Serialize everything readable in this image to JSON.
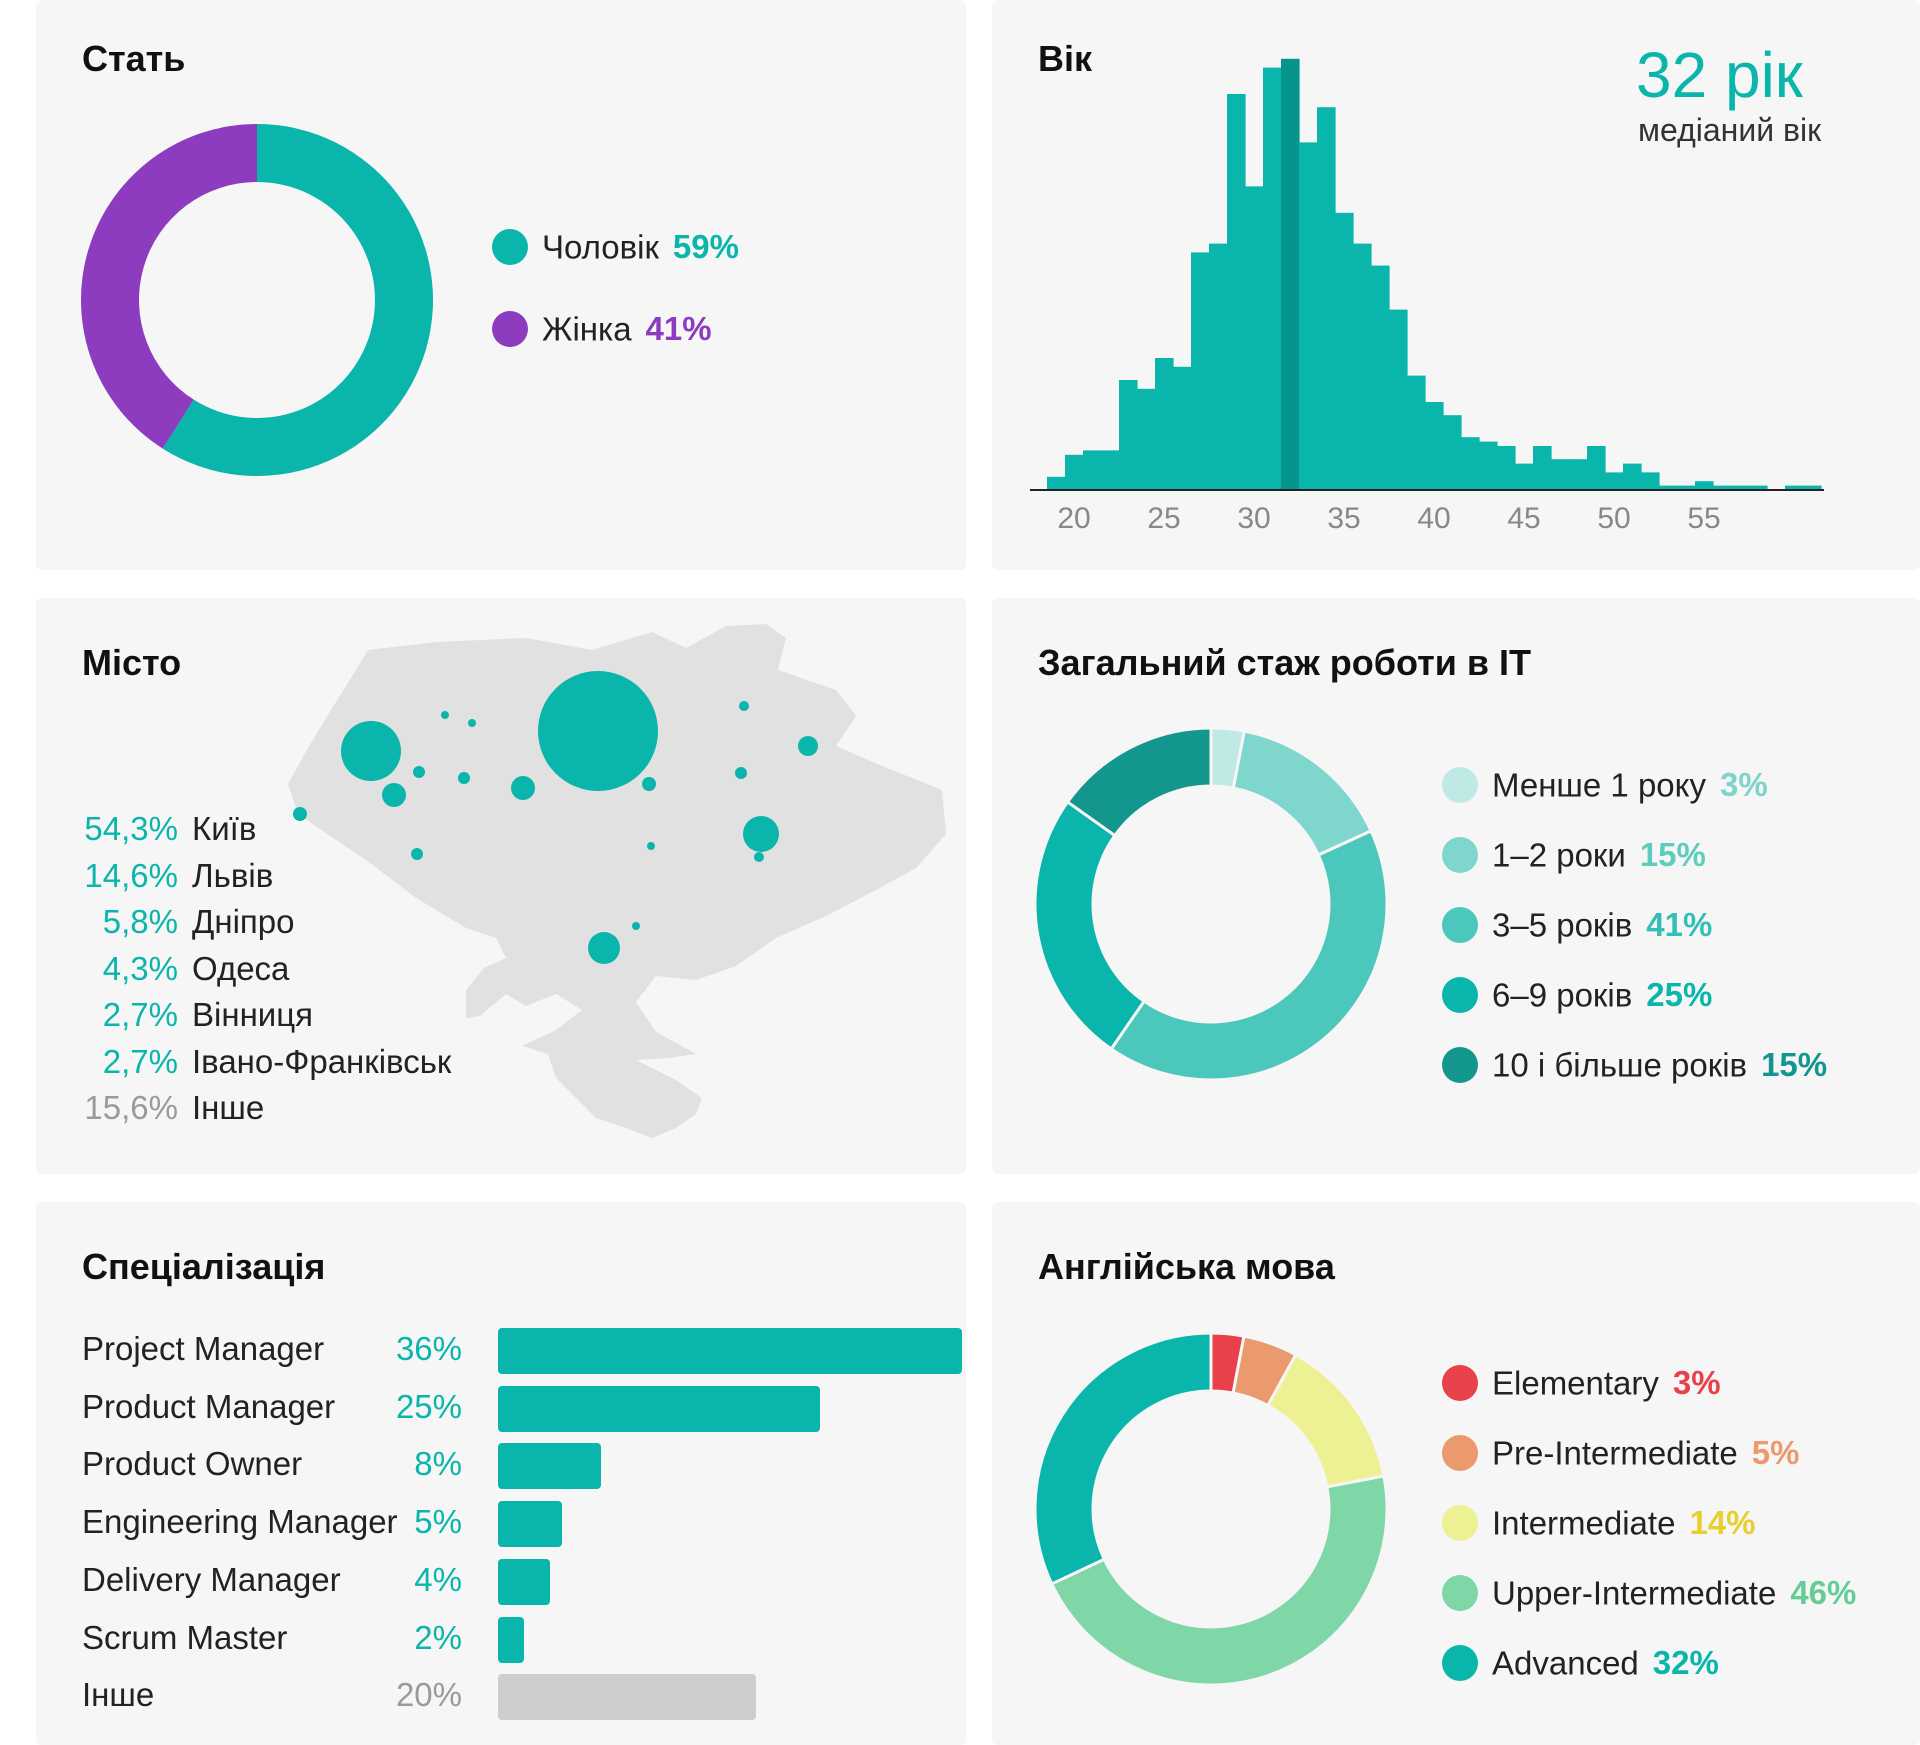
{
  "panels": {
    "gender": {
      "title": "Стать"
    },
    "age": {
      "title": "Вік",
      "median_value": "32 рік",
      "median_label": "медіаний вік"
    },
    "city": {
      "title": "Місто"
    },
    "experience": {
      "title": "Загальний стаж роботи в IT"
    },
    "specialization": {
      "title": "Спеціалізація"
    },
    "english": {
      "title": "Англійська мова"
    }
  },
  "chart_data": [
    {
      "id": "gender",
      "type": "pie",
      "donut": true,
      "slices": [
        {
          "label": "Чоловік",
          "value": 59,
          "pct": "59%",
          "color": "#0ab5ab"
        },
        {
          "label": "Жінка",
          "value": 41,
          "pct": "41%",
          "color": "#8e3cbf"
        }
      ]
    },
    {
      "id": "age",
      "type": "bar",
      "histogram": true,
      "x_start": 18.5,
      "bin_width": 1,
      "xlim": [
        18,
        61
      ],
      "values": [
        3,
        8,
        9,
        9,
        25,
        23,
        30,
        28,
        54,
        56,
        90,
        69,
        96,
        98,
        79,
        87,
        63,
        56,
        51,
        41,
        26,
        20,
        17,
        12,
        11,
        10,
        6,
        10,
        7,
        7,
        10,
        4,
        6,
        4,
        1,
        1,
        2,
        1,
        1,
        1,
        0,
        1,
        1
      ],
      "ylim": [
        0,
        100
      ],
      "median": 32,
      "xticks": [
        20,
        25,
        30,
        35,
        40,
        45,
        50,
        55
      ],
      "color": "#0ab5ab",
      "median_color": "#05958c"
    },
    {
      "id": "city",
      "type": "scatter",
      "map": "ukraine",
      "cities": [
        {
          "pct": "54,3%",
          "name": "Київ"
        },
        {
          "pct": "14,6%",
          "name": "Львів"
        },
        {
          "pct": "5,8%",
          "name": "Дніпро"
        },
        {
          "pct": "4,3%",
          "name": "Одеса"
        },
        {
          "pct": "2,7%",
          "name": "Вінниця"
        },
        {
          "pct": "2,7%",
          "name": "Івано-Франківськ"
        },
        {
          "pct": "15,6%",
          "name": "Інше"
        }
      ],
      "pct_color": "#0ab5ab",
      "other_color": "#9a9a9a",
      "bubble_color": "#0ab5ab",
      "map_color": "#e1e1e1"
    },
    {
      "id": "experience",
      "type": "pie",
      "donut": true,
      "slices": [
        {
          "label": "Менше 1 року",
          "value": 3,
          "pct": "3%",
          "color": "#bfe9e4",
          "text_color": "#7fd3ca"
        },
        {
          "label": "1–2 роки",
          "value": 15,
          "pct": "15%",
          "color": "#7fd6cd",
          "text_color": "#5ecbbf"
        },
        {
          "label": "3–5 років",
          "value": 41,
          "pct": "41%",
          "color": "#4cc7bc",
          "text_color": "#33bfb3"
        },
        {
          "label": "6–9 років",
          "value": 25,
          "pct": "25%",
          "color": "#0ab5ab",
          "text_color": "#0ab5ab"
        },
        {
          "label": "10 і більше років",
          "value": 15,
          "pct": "15%",
          "color": "#12968d",
          "text_color": "#12968d"
        }
      ]
    },
    {
      "id": "specialization",
      "type": "bar",
      "orientation": "horizontal",
      "categories": [
        "Project Manager",
        "Product Manager",
        "Product Owner",
        "Engineering Manager",
        "Delivery Manager",
        "Scrum Master",
        "Інше"
      ],
      "values": [
        36,
        25,
        8,
        5,
        4,
        2,
        20
      ],
      "labels": [
        "36%",
        "25%",
        "8%",
        "5%",
        "4%",
        "2%",
        "20%"
      ],
      "color": "#0ab5ab",
      "other_color": "#cdcdcd",
      "other_label_color": "#9a9a9a"
    },
    {
      "id": "english",
      "type": "pie",
      "donut": true,
      "slices": [
        {
          "label": "Elementary",
          "value": 3,
          "pct": "3%",
          "color": "#e8414a",
          "text_color": "#e8414a"
        },
        {
          "label": "Pre-Intermediate",
          "value": 5,
          "pct": "5%",
          "color": "#eb9a6e",
          "text_color": "#eb9a6e"
        },
        {
          "label": "Intermediate",
          "value": 14,
          "pct": "14%",
          "color": "#eef094",
          "text_color": "#e8cf2e"
        },
        {
          "label": "Upper-Intermediate",
          "value": 46,
          "pct": "46%",
          "color": "#7fd6a6",
          "text_color": "#66cc95"
        },
        {
          "label": "Advanced",
          "value": 32,
          "pct": "32%",
          "color": "#0ab5ab",
          "text_color": "#0ab5ab"
        }
      ]
    }
  ]
}
